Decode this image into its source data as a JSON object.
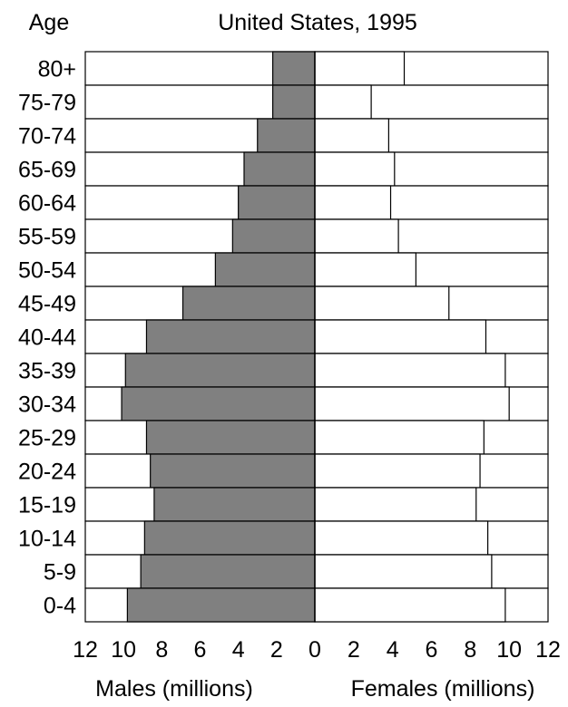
{
  "chart_data": {
    "type": "bar",
    "subtype": "population-pyramid",
    "title": "United States, 1995",
    "y_axis_title": "Age",
    "categories": [
      "80+",
      "75-79",
      "70-74",
      "65-69",
      "60-64",
      "55-59",
      "50-54",
      "45-49",
      "40-44",
      "35-39",
      "30-34",
      "25-29",
      "20-24",
      "15-19",
      "10-14",
      "5-9",
      "0-4"
    ],
    "series": [
      {
        "name": "Males (millions)",
        "side": "left",
        "color": "#808080",
        "values": [
          2.2,
          2.2,
          3.0,
          3.7,
          4.0,
          4.3,
          5.2,
          6.9,
          8.8,
          9.9,
          10.1,
          8.8,
          8.6,
          8.4,
          8.9,
          9.1,
          9.8
        ]
      },
      {
        "name": "Females (millions)",
        "side": "right",
        "color": "#ffffff",
        "values": [
          4.6,
          2.9,
          3.8,
          4.1,
          3.9,
          4.3,
          5.2,
          6.9,
          8.8,
          9.8,
          10.0,
          8.7,
          8.5,
          8.3,
          8.9,
          9.1,
          9.8
        ]
      }
    ],
    "x_ticks_left": [
      "12",
      "10",
      "8",
      "6",
      "4",
      "2",
      "0"
    ],
    "x_ticks_right": [
      "2",
      "4",
      "6",
      "8",
      "10",
      "12"
    ],
    "xlim": [
      0,
      12
    ],
    "xlabel_left": "Males (millions)",
    "xlabel_right": "Females (millions)",
    "grid": false,
    "legend": "none"
  }
}
